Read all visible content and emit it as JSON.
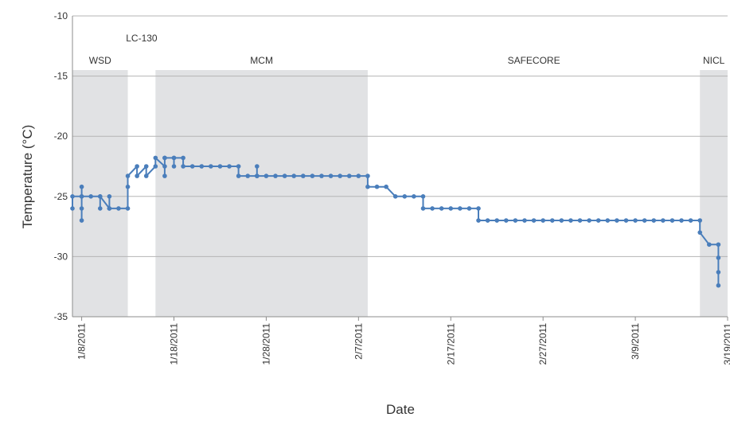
{
  "chart_data": {
    "type": "line",
    "xlabel": "Date",
    "ylabel": "Temperature (°C)",
    "ylim": [
      -35,
      -10
    ],
    "yticks": [
      -10,
      -15,
      -20,
      -25,
      -30,
      -35
    ],
    "xlim": [
      "1/7/2011",
      "3/19/2011"
    ],
    "xticks": [
      "1/8/2011",
      "1/18/2011",
      "1/28/2011",
      "2/7/2011",
      "2/17/2011",
      "2/27/2011",
      "3/9/2011",
      "3/19/2011"
    ],
    "grid": "horizontal",
    "colors": {
      "line": "#4a7ebb",
      "region": "#e1e2e4",
      "grid": "#b5b5b5"
    },
    "regions": [
      {
        "label": "WSD",
        "start": "1/7/2011",
        "end": "1/13/2011",
        "shaded": true
      },
      {
        "label": "LC-130",
        "start": "1/13/2011",
        "end": "1/16/2011",
        "shaded": false
      },
      {
        "label": "MCM",
        "start": "1/16/2011",
        "end": "2/8/2011",
        "shaded": true
      },
      {
        "label": "SAFECORE",
        "start": "2/8/2011",
        "end": "3/16/2011",
        "shaded": false
      },
      {
        "label": "NICL",
        "start": "3/16/2011",
        "end": "3/19/2011",
        "shaded": true
      }
    ],
    "series": [
      {
        "points": [
          [
            "1/7/2011",
            -26
          ],
          [
            "1/7/2011",
            -25
          ],
          [
            "1/8/2011",
            -25
          ],
          [
            "1/8/2011",
            -26
          ],
          [
            "1/8/2011",
            -24.2
          ],
          [
            "1/8/2011",
            -27
          ],
          [
            "1/8/2011",
            -25
          ],
          [
            "1/9/2011",
            -25
          ],
          [
            "1/10/2011",
            -25
          ],
          [
            "1/10/2011",
            -26
          ],
          [
            "1/10/2011",
            -25
          ],
          [
            "1/11/2011",
            -26
          ],
          [
            "1/11/2011",
            -25
          ],
          [
            "1/11/2011",
            -26
          ],
          [
            "1/12/2011",
            -26
          ],
          [
            "1/13/2011",
            -26
          ],
          [
            "1/13/2011",
            -24.2
          ],
          [
            "1/13/2011",
            -23.3
          ],
          [
            "1/14/2011",
            -22.5
          ],
          [
            "1/14/2011",
            -23.3
          ],
          [
            "1/15/2011",
            -22.5
          ],
          [
            "1/15/2011",
            -23.3
          ],
          [
            "1/16/2011",
            -22.5
          ],
          [
            "1/16/2011",
            -21.8
          ],
          [
            "1/17/2011",
            -22.5
          ],
          [
            "1/17/2011",
            -21.8
          ],
          [
            "1/17/2011",
            -23.3
          ],
          [
            "1/17/2011",
            -21.8
          ],
          [
            "1/18/2011",
            -21.8
          ],
          [
            "1/18/2011",
            -22.5
          ],
          [
            "1/18/2011",
            -21.8
          ],
          [
            "1/19/2011",
            -21.8
          ],
          [
            "1/19/2011",
            -22.5
          ],
          [
            "1/20/2011",
            -22.5
          ],
          [
            "1/21/2011",
            -22.5
          ],
          [
            "1/22/2011",
            -22.5
          ],
          [
            "1/23/2011",
            -22.5
          ],
          [
            "1/24/2011",
            -22.5
          ],
          [
            "1/25/2011",
            -22.5
          ],
          [
            "1/25/2011",
            -23.3
          ],
          [
            "1/26/2011",
            -23.3
          ],
          [
            "1/27/2011",
            -23.3
          ],
          [
            "1/27/2011",
            -22.5
          ],
          [
            "1/27/2011",
            -23.3
          ],
          [
            "1/28/2011",
            -23.3
          ],
          [
            "1/29/2011",
            -23.3
          ],
          [
            "1/30/2011",
            -23.3
          ],
          [
            "1/31/2011",
            -23.3
          ],
          [
            "2/1/2011",
            -23.3
          ],
          [
            "2/2/2011",
            -23.3
          ],
          [
            "2/3/2011",
            -23.3
          ],
          [
            "2/4/2011",
            -23.3
          ],
          [
            "2/5/2011",
            -23.3
          ],
          [
            "2/6/2011",
            -23.3
          ],
          [
            "2/7/2011",
            -23.3
          ],
          [
            "2/8/2011",
            -23.3
          ],
          [
            "2/8/2011",
            -24.2
          ],
          [
            "2/9/2011",
            -24.2
          ],
          [
            "2/10/2011",
            -24.2
          ],
          [
            "2/11/2011",
            -25
          ],
          [
            "2/12/2011",
            -25
          ],
          [
            "2/13/2011",
            -25
          ],
          [
            "2/14/2011",
            -25
          ],
          [
            "2/14/2011",
            -26
          ],
          [
            "2/15/2011",
            -26
          ],
          [
            "2/16/2011",
            -26
          ],
          [
            "2/17/2011",
            -26
          ],
          [
            "2/18/2011",
            -26
          ],
          [
            "2/19/2011",
            -26
          ],
          [
            "2/20/2011",
            -26
          ],
          [
            "2/20/2011",
            -27
          ],
          [
            "2/21/2011",
            -27
          ],
          [
            "2/22/2011",
            -27
          ],
          [
            "2/23/2011",
            -27
          ],
          [
            "2/24/2011",
            -27
          ],
          [
            "2/25/2011",
            -27
          ],
          [
            "2/26/2011",
            -27
          ],
          [
            "2/27/2011",
            -27
          ],
          [
            "2/28/2011",
            -27
          ],
          [
            "3/1/2011",
            -27
          ],
          [
            "3/2/2011",
            -27
          ],
          [
            "3/3/2011",
            -27
          ],
          [
            "3/4/2011",
            -27
          ],
          [
            "3/5/2011",
            -27
          ],
          [
            "3/6/2011",
            -27
          ],
          [
            "3/7/2011",
            -27
          ],
          [
            "3/8/2011",
            -27
          ],
          [
            "3/9/2011",
            -27
          ],
          [
            "3/10/2011",
            -27
          ],
          [
            "3/11/2011",
            -27
          ],
          [
            "3/12/2011",
            -27
          ],
          [
            "3/13/2011",
            -27
          ],
          [
            "3/14/2011",
            -27
          ],
          [
            "3/15/2011",
            -27
          ],
          [
            "3/16/2011",
            -27
          ],
          [
            "3/16/2011",
            -28
          ],
          [
            "3/17/2011",
            -29
          ],
          [
            "3/18/2011",
            -29
          ],
          [
            "3/18/2011",
            -30.1
          ],
          [
            "3/18/2011",
            -31.3
          ],
          [
            "3/18/2011",
            -32.4
          ]
        ]
      }
    ]
  }
}
